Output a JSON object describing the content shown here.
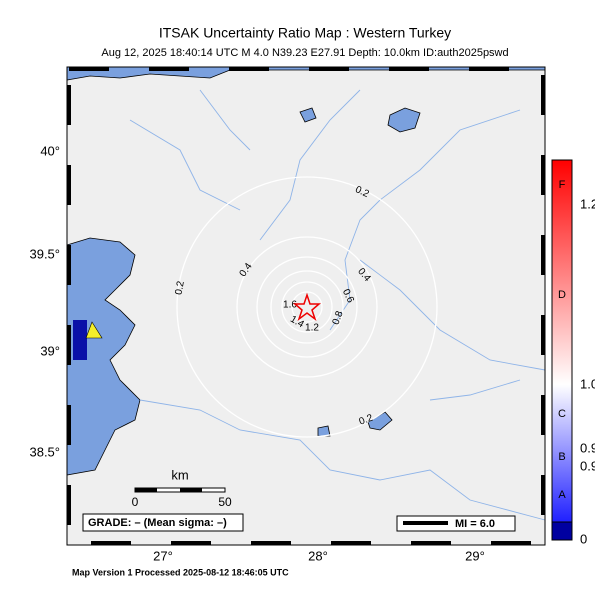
{
  "header": {
    "title": "ITSAK Uncertainty Ratio Map : Western Turkey",
    "subtitle": "Aug 12, 2025 18:40:14 UTC   M 4.0   N39.23 E27.91   Depth: 10.0km   ID:auth2025pswd"
  },
  "axes": {
    "lat_labels": [
      "40°",
      "39.5°",
      "39°",
      "38.5°"
    ],
    "lon_labels": [
      "27°",
      "28°",
      "29°"
    ]
  },
  "contour_labels": [
    "0.2",
    "0.4",
    "0.2",
    "0.4",
    "0.6",
    "0.8",
    "1.2",
    "1.4",
    "1.6",
    "0.2"
  ],
  "scale_bar": {
    "unit": "km",
    "start": "0",
    "end": "50"
  },
  "grade": "GRADE: – (Mean sigma: –)",
  "legend": "MI = 6.0",
  "colorbar": {
    "grades": [
      "F",
      "D",
      "C",
      "B",
      "A"
    ],
    "labels": [
      "1.2",
      "1.0",
      "0.9",
      "0.9",
      "0"
    ]
  },
  "footer": "Map Version 1 Processed 2025-08-12 18:46:05 UTC"
}
